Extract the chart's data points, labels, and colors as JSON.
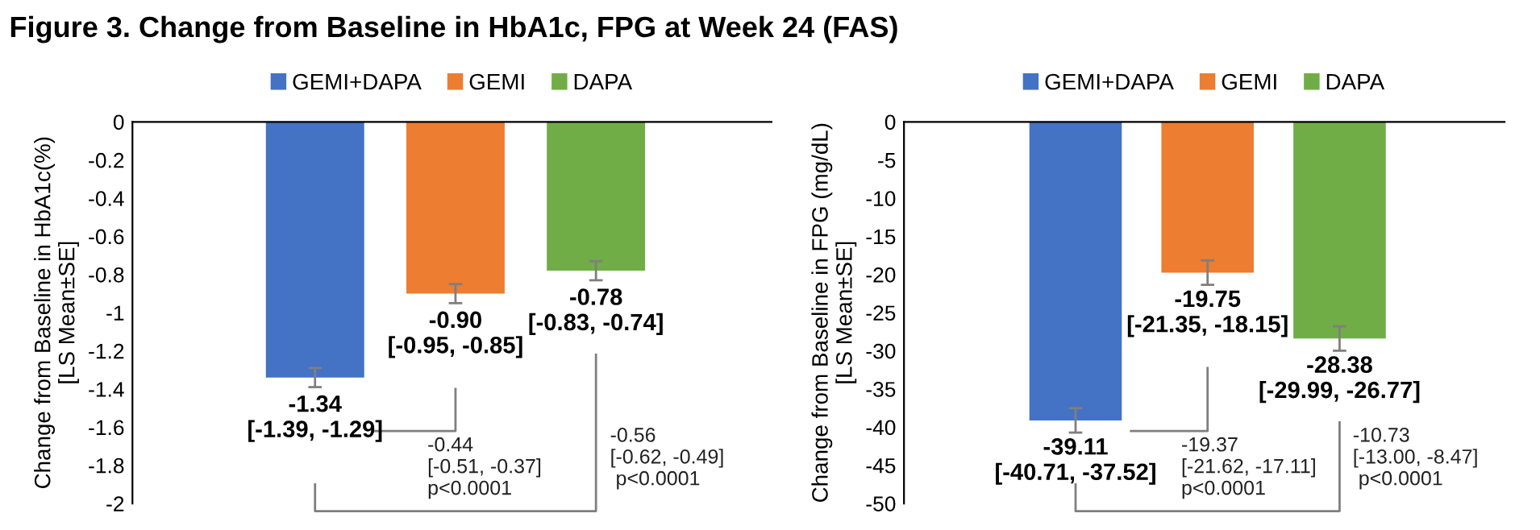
{
  "chart_data": [
    {
      "type": "bar",
      "title": "Figure 3. Change from Baseline in HbA1c, FPG at Week 24 (FAS)",
      "ylabel": "Change from Baseline in HbA1c(%)\n[LS Mean±SE]",
      "categories": [
        null,
        null,
        null
      ],
      "series": [
        {
          "name": "GEMI+DAPA",
          "color": "#4472c4",
          "values": [
            -1.34,
            null,
            null
          ],
          "errors": [
            0.05,
            null,
            null
          ],
          "value_labels": [
            "-1.34\n[-1.39, -1.29]",
            null,
            null
          ]
        },
        {
          "name": "GEMI",
          "color": "#ed7d31",
          "values": [
            null,
            -0.9,
            null
          ],
          "errors": [
            null,
            0.05,
            null
          ],
          "value_labels": [
            null,
            "-0.90\n[-0.95, -0.85]",
            null
          ]
        },
        {
          "name": "DAPA",
          "color": "#70ad47",
          "values": [
            null,
            null,
            -0.78
          ],
          "errors": [
            null,
            null,
            0.05
          ],
          "value_labels": [
            null,
            null,
            "-0.78\n[-0.83, -0.74]"
          ]
        }
      ],
      "ylim": [
        -2,
        0
      ],
      "yticks": [
        0,
        -0.2,
        -0.4,
        -0.6,
        -0.8,
        -1,
        -1.2,
        -1.4,
        -1.6,
        -1.8,
        -2
      ],
      "legend": "top",
      "grid": false,
      "tick_labels": "y",
      "annotations": [
        "-0.44\n[-0.51, -0.37]\np<0.0001",
        "-0.56\n[-0.62, -0.49]\n p<0.0001"
      ]
    },
    {
      "type": "bar",
      "ylabel": "Change from Baseline in FPG (mg/dL)\n[LS Mean±SE]",
      "categories": [
        null,
        null,
        null
      ],
      "series": [
        {
          "name": "GEMI+DAPA",
          "color": "#4472c4",
          "values": [
            -39.11,
            null,
            null
          ],
          "errors": [
            1.6,
            null,
            null
          ],
          "value_labels": [
            "-39.11\n[-40.71, -37.52]",
            null,
            null
          ]
        },
        {
          "name": "GEMI",
          "color": "#ed7d31",
          "values": [
            null,
            -19.75,
            null
          ],
          "errors": [
            null,
            1.6,
            null
          ],
          "value_labels": [
            null,
            "-19.75\n[-21.35, -18.15]",
            null
          ]
        },
        {
          "name": "DAPA",
          "color": "#70ad47",
          "values": [
            null,
            null,
            -28.38
          ],
          "errors": [
            null,
            null,
            1.6
          ],
          "value_labels": [
            null,
            null,
            "-28.38\n[-29.99, -26.77]"
          ]
        }
      ],
      "ylim": [
        -50,
        0
      ],
      "yticks": [
        0,
        -5,
        -10,
        -15,
        -20,
        -25,
        -30,
        -35,
        -40,
        -45,
        -50
      ],
      "legend": "top",
      "grid": false,
      "tick_labels": "y",
      "annotations": [
        "-19.37\n[-21.62, -17.11]\np<0.0001",
        "-10.73\n[-13.00, -8.47]\n p<0.0001"
      ]
    }
  ]
}
